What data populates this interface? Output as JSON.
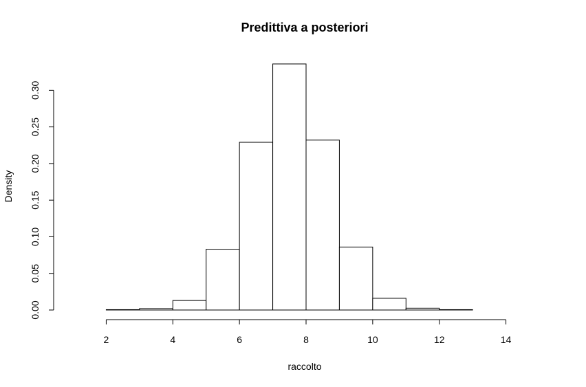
{
  "chart_data": {
    "type": "bar",
    "title": "Predittiva a posteriori",
    "xlabel": "raccolto",
    "ylabel": "Density",
    "bins": [
      {
        "start": 1,
        "end": 2,
        "density": 0.0
      },
      {
        "start": 2,
        "end": 3,
        "density": 0.0005
      },
      {
        "start": 3,
        "end": 4,
        "density": 0.002
      },
      {
        "start": 4,
        "end": 5,
        "density": 0.013
      },
      {
        "start": 5,
        "end": 6,
        "density": 0.083
      },
      {
        "start": 6,
        "end": 7,
        "density": 0.229
      },
      {
        "start": 7,
        "end": 8,
        "density": 0.336
      },
      {
        "start": 8,
        "end": 9,
        "density": 0.232
      },
      {
        "start": 9,
        "end": 10,
        "density": 0.086
      },
      {
        "start": 10,
        "end": 11,
        "density": 0.016
      },
      {
        "start": 11,
        "end": 12,
        "density": 0.0025
      },
      {
        "start": 12,
        "end": 13,
        "density": 0.0005
      },
      {
        "start": 13,
        "end": 14,
        "density": 0.0
      },
      {
        "start": 14,
        "end": 15,
        "density": 0.0
      }
    ],
    "xlim": [
      1,
      15
    ],
    "ylim": [
      0,
      0.336
    ],
    "xticks": [
      "2",
      "4",
      "6",
      "8",
      "10",
      "12",
      "14"
    ],
    "yticks": [
      "0.00",
      "0.05",
      "0.10",
      "0.15",
      "0.20",
      "0.25",
      "0.30"
    ],
    "bar_fill": "#ffffff",
    "bar_stroke": "#000000",
    "grid": false,
    "legend": "none"
  }
}
